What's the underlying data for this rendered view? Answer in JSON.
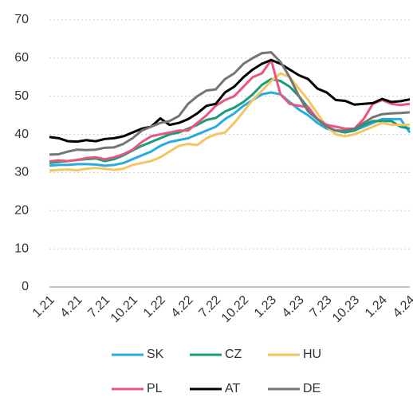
{
  "chart_data": {
    "type": "line",
    "categories": [
      "1.21",
      null,
      null,
      "4.21",
      null,
      null,
      "7.21",
      null,
      null,
      "10.21",
      null,
      null,
      "1.22",
      null,
      null,
      "4.22",
      null,
      null,
      "7.22",
      null,
      null,
      "10.22",
      null,
      null,
      "1.23",
      null,
      null,
      "4.23",
      null,
      null,
      "7.23",
      null,
      null,
      "10.23",
      null,
      null,
      "1.24",
      null,
      null,
      "4.24"
    ],
    "series": [
      {
        "name": "SK",
        "color": "#29abe2",
        "values": [
          31.8,
          32,
          32,
          32.2,
          32.2,
          32.1,
          31.8,
          32,
          32.5,
          33.5,
          34.5,
          35.5,
          37,
          38,
          38.5,
          39,
          40,
          41,
          42,
          44,
          45.5,
          47.5,
          49,
          50.5,
          51,
          50.5,
          48.5,
          46.5,
          45,
          43,
          41.5,
          41,
          40.8,
          41,
          42,
          43,
          44,
          44,
          44,
          40.5
        ]
      },
      {
        "name": "CZ",
        "color": "#1a9c7a",
        "values": [
          32.5,
          32.8,
          33,
          33.3,
          33.5,
          33.7,
          33,
          33.5,
          34.5,
          35.8,
          37,
          38,
          39,
          40,
          40.5,
          41.5,
          42.5,
          43.8,
          44.3,
          46,
          47,
          48.5,
          50.5,
          53,
          54.5,
          54,
          52.5,
          50,
          47,
          44,
          42,
          41,
          40.5,
          41,
          42.5,
          43.5,
          43.5,
          43.5,
          42,
          41.5
        ]
      },
      {
        "name": "HU",
        "color": "#f5c563",
        "values": [
          30.5,
          30.7,
          30.8,
          30.6,
          31,
          31.2,
          31,
          30.7,
          31,
          32,
          32.5,
          33,
          34,
          35.5,
          37,
          37.5,
          37.2,
          39,
          40,
          40.5,
          43,
          46,
          49,
          51.5,
          54,
          56,
          55,
          52,
          49,
          45.5,
          42,
          40,
          39.5,
          40,
          41,
          42,
          43,
          42.5,
          42.5,
          42.5
        ]
      },
      {
        "name": "PL",
        "color": "#e8577d",
        "values": [
          32.9,
          33.2,
          33,
          33.3,
          33.8,
          34,
          33.5,
          34,
          34.8,
          36,
          38,
          39.5,
          40,
          40.5,
          41,
          41,
          43,
          45,
          47.5,
          49,
          50,
          52.5,
          55,
          56,
          59.5,
          50.5,
          48,
          47.5,
          47.2,
          44,
          42.5,
          42,
          41.5,
          41.5,
          44,
          48,
          49,
          48,
          47.7,
          48
        ]
      },
      {
        "name": "AT",
        "color": "#000000",
        "values": [
          39.3,
          39,
          38.2,
          38.1,
          38.5,
          38.2,
          38.8,
          39,
          39.5,
          40.5,
          41.5,
          42,
          44.2,
          42.5,
          43,
          44,
          45.5,
          47.5,
          48,
          51,
          52.5,
          55,
          57,
          58.5,
          59.5,
          58.5,
          57,
          55.5,
          54.5,
          52,
          51,
          49,
          48.8,
          47.8,
          48,
          48.2,
          49.3,
          48.5,
          48.7,
          49.2
        ]
      },
      {
        "name": "DE",
        "color": "#757575",
        "values": [
          34.7,
          34.8,
          35.5,
          36,
          35.9,
          36,
          36.5,
          36.6,
          37.5,
          39,
          41,
          42,
          43,
          43.5,
          44.8,
          48,
          50,
          51.5,
          51.8,
          54.5,
          56,
          58.5,
          60,
          61.3,
          61.5,
          59,
          55,
          50,
          46,
          44,
          42,
          41,
          41,
          41.5,
          43,
          44.5,
          45.3,
          45.5,
          45.6,
          45.8
        ]
      }
    ],
    "ylim": [
      0,
      70
    ],
    "yticks": [
      0,
      10,
      20,
      30,
      40,
      50,
      60,
      70
    ],
    "grid": true
  }
}
